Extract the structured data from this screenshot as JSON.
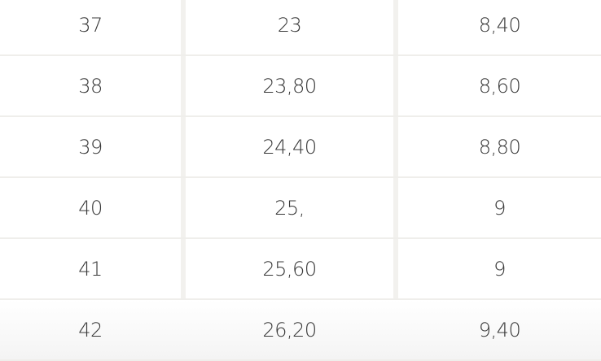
{
  "table": {
    "rows": [
      [
        "37",
        "23",
        "8,40"
      ],
      [
        "38",
        "23,80",
        "8,60"
      ],
      [
        "39",
        "24,40",
        "8,80"
      ],
      [
        "40",
        "25,",
        "9"
      ],
      [
        "41",
        "25,60",
        "9"
      ],
      [
        "42",
        "26,20",
        "9,40"
      ]
    ]
  }
}
